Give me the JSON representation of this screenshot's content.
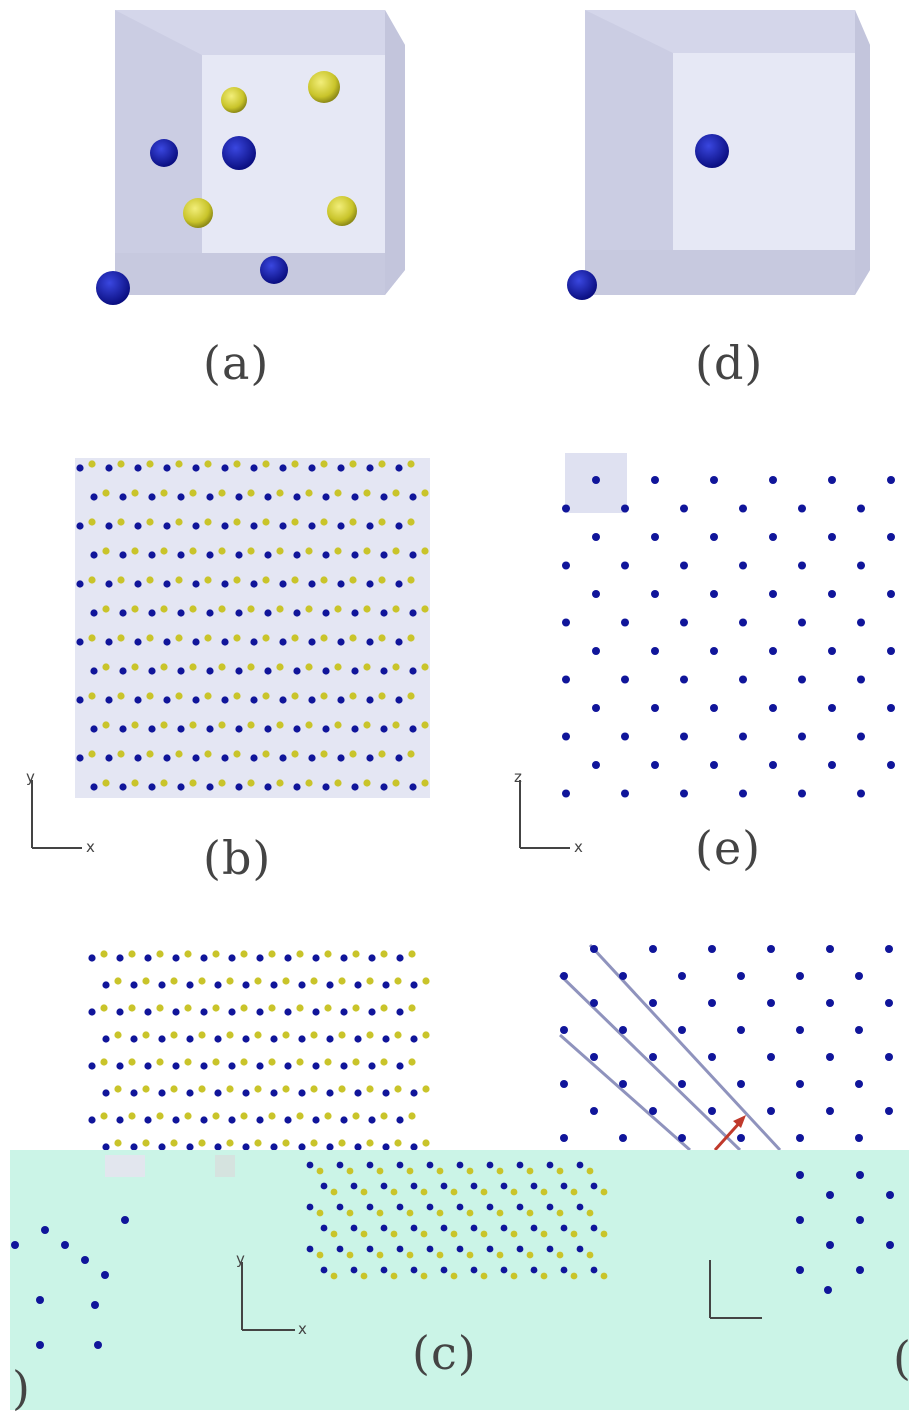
{
  "figure": {
    "panels": [
      {
        "id": "a",
        "label": "(a)"
      },
      {
        "id": "b",
        "label": "(b)"
      },
      {
        "id": "c",
        "label": "(c)"
      },
      {
        "id": "d",
        "label": "(d)"
      },
      {
        "id": "e",
        "label": "(e)"
      }
    ],
    "axes": {
      "b": {
        "vertical": "y",
        "horizontal": "x"
      },
      "c": {
        "vertical": "y",
        "horizontal": "x"
      },
      "e": {
        "vertical": "z",
        "horizontal": "x"
      }
    },
    "colors": {
      "blue_atom": "#10159a",
      "yellow_atom": "#c9c42a",
      "cell_box": "#d7d9ec",
      "overlay": "#c9f4e6",
      "arrow": "#c0392b"
    },
    "cut_off_labels": {
      "left": ")",
      "right": "("
    }
  }
}
